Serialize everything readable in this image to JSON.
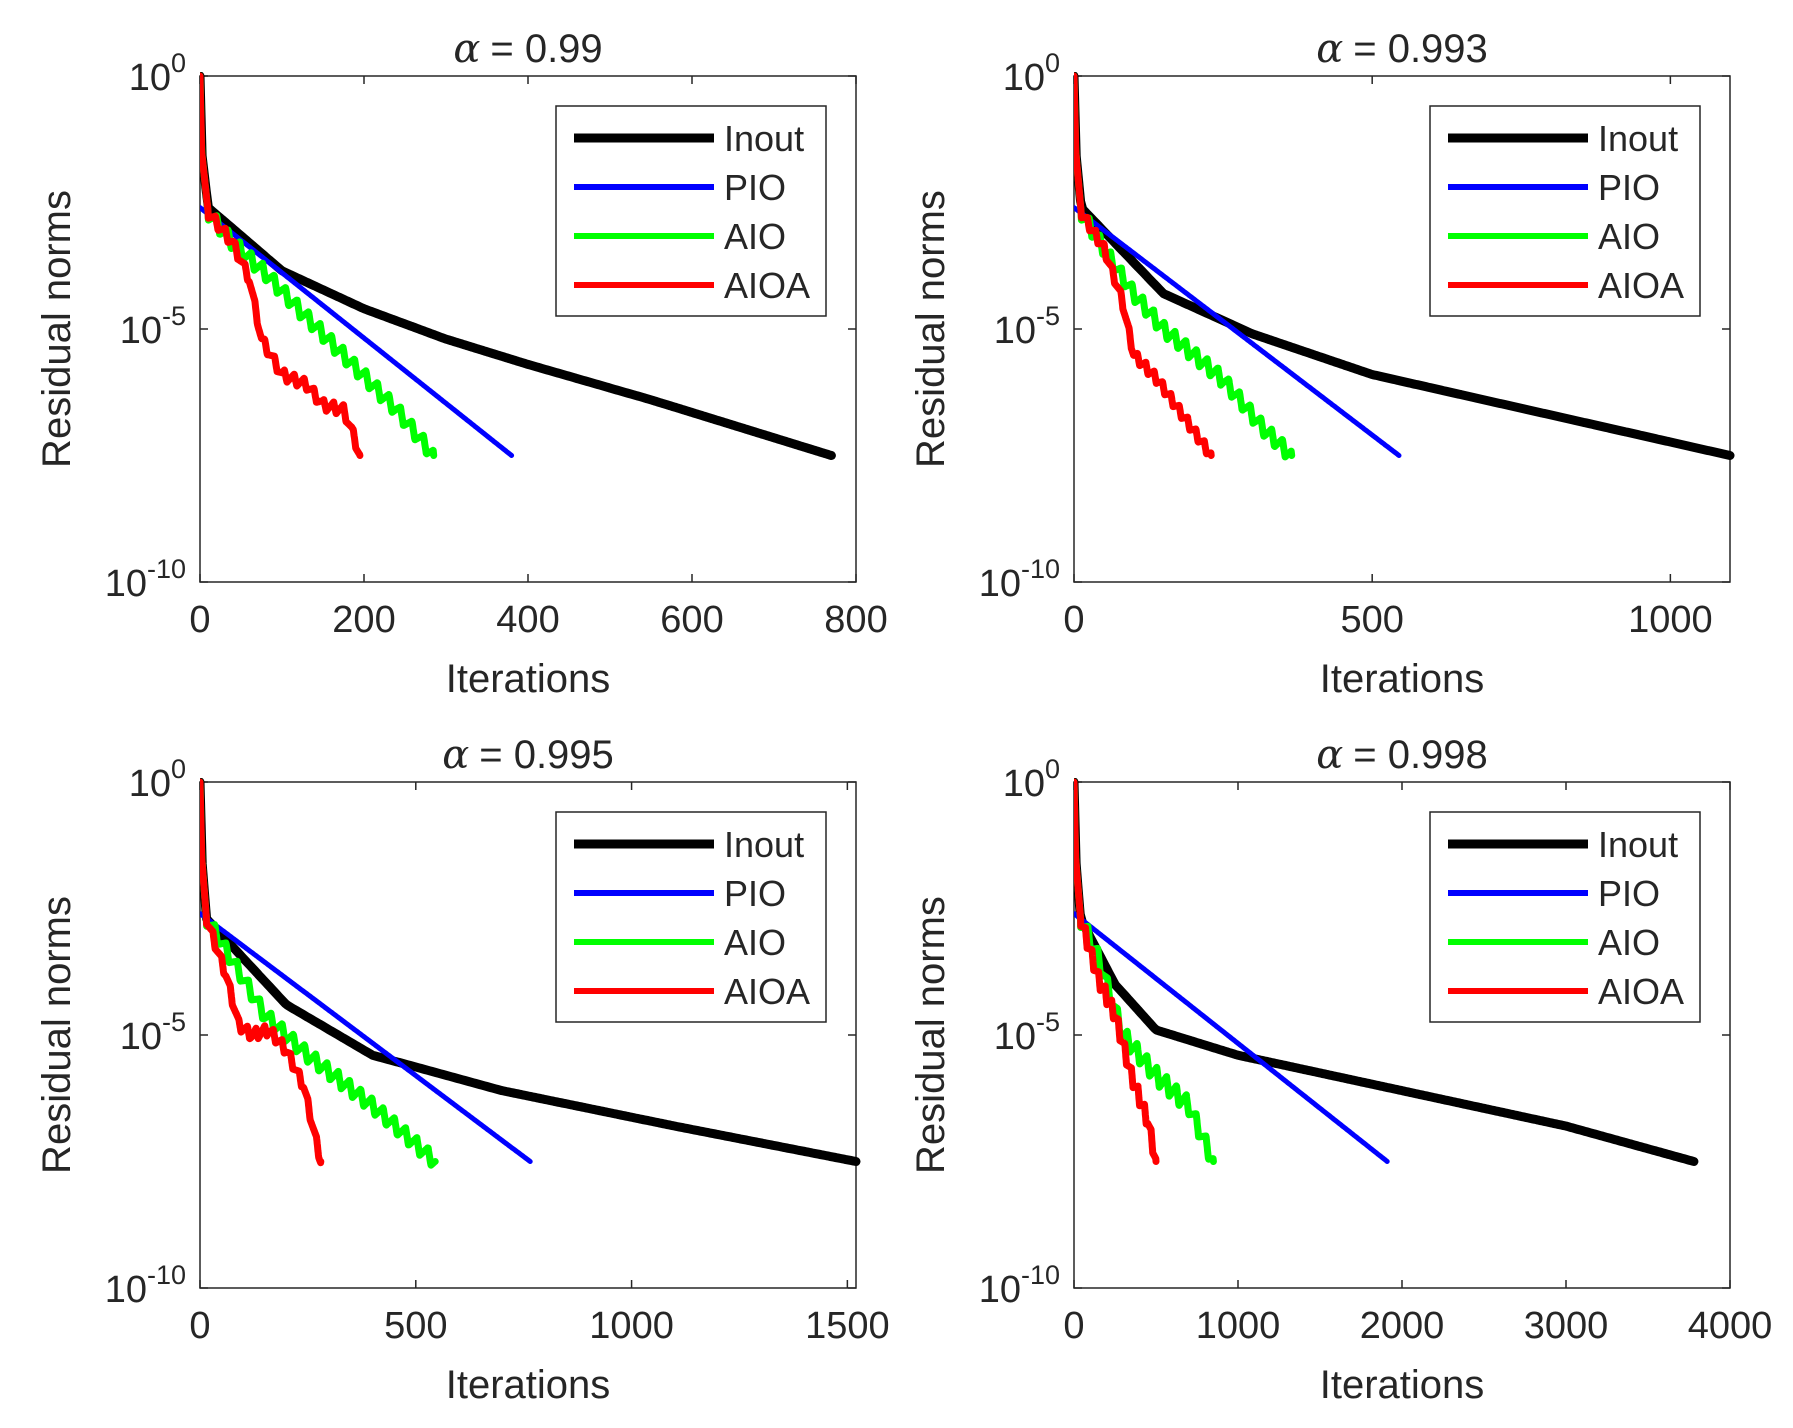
{
  "chart_data": [
    {
      "type": "line",
      "title_symbol": "α",
      "title_value": "= 0.99",
      "xlabel": "Iterations",
      "ylabel": "Residual norms",
      "yscale": "log",
      "xlim": [
        0,
        800
      ],
      "ylim_exp": [
        -10,
        0
      ],
      "xticks": [
        0,
        200,
        400,
        600,
        800
      ],
      "xtick_labels": [
        "0",
        "200",
        "400",
        "600",
        "800"
      ],
      "yticks_exp": [
        0,
        -5,
        -10
      ],
      "ytick_base": "10",
      "ytick_exps": [
        "0",
        "-5",
        "-10"
      ],
      "legend": [
        "Inout",
        "PIO",
        "AIO",
        "AIOA"
      ],
      "series": [
        {
          "name": "Inout",
          "color": "#000000",
          "shape": "smooth",
          "points": [
            [
              0,
              0
            ],
            [
              2,
              -1.5
            ],
            [
              10,
              -2.6
            ],
            [
              100,
              -3.85
            ],
            [
              200,
              -4.6
            ],
            [
              300,
              -5.2
            ],
            [
              400,
              -5.7
            ],
            [
              550,
              -6.4
            ],
            [
              770,
              -7.5
            ]
          ]
        },
        {
          "name": "PIO",
          "color": "#0000ff",
          "shape": "smooth",
          "points": [
            [
              0,
              -2.6
            ],
            [
              380,
              -7.5
            ]
          ]
        },
        {
          "name": "AIO",
          "color": "#00ff00",
          "shape": "jagged",
          "amp": 0.3,
          "period": 14,
          "points": [
            [
              0,
              0
            ],
            [
              2,
              -1.5
            ],
            [
              10,
              -2.7
            ],
            [
              40,
              -3.3
            ],
            [
              80,
              -3.9
            ],
            [
              120,
              -4.6
            ],
            [
              180,
              -5.6
            ],
            [
              240,
              -6.6
            ],
            [
              285,
              -7.5
            ]
          ]
        },
        {
          "name": "AIOA",
          "color": "#ff0000",
          "shape": "jagged",
          "amp": 0.22,
          "period": 12,
          "points": [
            [
              0,
              0
            ],
            [
              2,
              -1.5
            ],
            [
              10,
              -2.7
            ],
            [
              40,
              -3.3
            ],
            [
              60,
              -4.0
            ],
            [
              75,
              -5.2
            ],
            [
              100,
              -5.9
            ],
            [
              130,
              -6.1
            ],
            [
              150,
              -6.5
            ],
            [
              175,
              -6.6
            ],
            [
              185,
              -7.0
            ],
            [
              195,
              -7.5
            ]
          ]
        }
      ]
    },
    {
      "type": "line",
      "title_symbol": "α",
      "title_value": "= 0.993",
      "xlabel": "Iterations",
      "ylabel": "Residual norms",
      "yscale": "log",
      "xlim": [
        0,
        1100
      ],
      "ylim_exp": [
        -10,
        0
      ],
      "xticks": [
        0,
        500,
        1000
      ],
      "xtick_labels": [
        "0",
        "500",
        "1000"
      ],
      "yticks_exp": [
        0,
        -5,
        -10
      ],
      "ytick_base": "10",
      "ytick_exps": [
        "0",
        "-5",
        "-10"
      ],
      "legend": [
        "Inout",
        "PIO",
        "AIO",
        "AIOA"
      ],
      "series": [
        {
          "name": "Inout",
          "color": "#000000",
          "shape": "smooth",
          "points": [
            [
              0,
              0
            ],
            [
              3,
              -1.5
            ],
            [
              12,
              -2.6
            ],
            [
              150,
              -4.3
            ],
            [
              300,
              -5.1
            ],
            [
              500,
              -5.9
            ],
            [
              800,
              -6.7
            ],
            [
              1100,
              -7.5
            ]
          ]
        },
        {
          "name": "PIO",
          "color": "#0000ff",
          "shape": "smooth",
          "points": [
            [
              0,
              -2.6
            ],
            [
              545,
              -7.5
            ]
          ]
        },
        {
          "name": "AIO",
          "color": "#00ff00",
          "shape": "jagged",
          "amp": 0.3,
          "period": 18,
          "points": [
            [
              0,
              0
            ],
            [
              3,
              -1.5
            ],
            [
              12,
              -2.7
            ],
            [
              60,
              -3.6
            ],
            [
              100,
              -4.3
            ],
            [
              150,
              -5.0
            ],
            [
              250,
              -6.0
            ],
            [
              320,
              -7.0
            ],
            [
              365,
              -7.5
            ]
          ]
        },
        {
          "name": "AIOA",
          "color": "#ff0000",
          "shape": "jagged",
          "amp": 0.2,
          "period": 14,
          "points": [
            [
              0,
              0
            ],
            [
              3,
              -1.5
            ],
            [
              12,
              -2.7
            ],
            [
              50,
              -3.4
            ],
            [
              80,
              -4.4
            ],
            [
              100,
              -5.5
            ],
            [
              140,
              -6.0
            ],
            [
              170,
              -6.5
            ],
            [
              200,
              -7.0
            ],
            [
              230,
              -7.5
            ]
          ]
        }
      ]
    },
    {
      "type": "line",
      "title_symbol": "α",
      "title_value": "= 0.995",
      "xlabel": "Iterations",
      "ylabel": "Residual norms",
      "yscale": "log",
      "xlim": [
        0,
        1520
      ],
      "ylim_exp": [
        -10,
        0
      ],
      "xticks": [
        0,
        500,
        1000,
        1500
      ],
      "xtick_labels": [
        "0",
        "500",
        "1000",
        "1500"
      ],
      "yticks_exp": [
        0,
        -5,
        -10
      ],
      "ytick_base": "10",
      "ytick_exps": [
        "0",
        "-5",
        "-10"
      ],
      "legend": [
        "Inout",
        "PIO",
        "AIO",
        "AIOA"
      ],
      "series": [
        {
          "name": "Inout",
          "color": "#000000",
          "shape": "smooth",
          "points": [
            [
              0,
              0
            ],
            [
              4,
              -1.5
            ],
            [
              15,
              -2.7
            ],
            [
              200,
              -4.4
            ],
            [
              400,
              -5.4
            ],
            [
              700,
              -6.1
            ],
            [
              1100,
              -6.8
            ],
            [
              1520,
              -7.5
            ]
          ]
        },
        {
          "name": "PIO",
          "color": "#0000ff",
          "shape": "smooth",
          "points": [
            [
              0,
              -2.6
            ],
            [
              765,
              -7.5
            ]
          ]
        },
        {
          "name": "AIO",
          "color": "#00ff00",
          "shape": "jagged",
          "amp": 0.3,
          "period": 26,
          "points": [
            [
              0,
              0
            ],
            [
              4,
              -1.5
            ],
            [
              15,
              -2.7
            ],
            [
              80,
              -3.6
            ],
            [
              150,
              -4.6
            ],
            [
              250,
              -5.4
            ],
            [
              400,
              -6.4
            ],
            [
              545,
              -7.5
            ]
          ]
        },
        {
          "name": "AIOA",
          "color": "#ff0000",
          "shape": "jagged",
          "amp": 0.22,
          "period": 20,
          "points": [
            [
              0,
              0
            ],
            [
              4,
              -1.5
            ],
            [
              15,
              -2.7
            ],
            [
              60,
              -3.8
            ],
            [
              90,
              -4.8
            ],
            [
              120,
              -5.0
            ],
            [
              160,
              -4.9
            ],
            [
              200,
              -5.3
            ],
            [
              240,
              -6.0
            ],
            [
              280,
              -7.5
            ]
          ]
        }
      ]
    },
    {
      "type": "line",
      "title_symbol": "α",
      "title_value": "= 0.998",
      "xlabel": "Iterations",
      "ylabel": "Residual norms",
      "yscale": "log",
      "xlim": [
        0,
        4000
      ],
      "ylim_exp": [
        -10,
        0
      ],
      "xticks": [
        0,
        1000,
        2000,
        3000,
        4000
      ],
      "xtick_labels": [
        "0",
        "1000",
        "2000",
        "3000",
        "4000"
      ],
      "yticks_exp": [
        0,
        -5,
        -10
      ],
      "ytick_base": "10",
      "ytick_exps": [
        "0",
        "-5",
        "-10"
      ],
      "legend": [
        "Inout",
        "PIO",
        "AIO",
        "AIOA"
      ],
      "series": [
        {
          "name": "Inout",
          "color": "#000000",
          "shape": "smooth",
          "points": [
            [
              0,
              0
            ],
            [
              10,
              -1.5
            ],
            [
              40,
              -2.7
            ],
            [
              250,
              -4.0
            ],
            [
              500,
              -4.9
            ],
            [
              1000,
              -5.4
            ],
            [
              2000,
              -6.1
            ],
            [
              3000,
              -6.8
            ],
            [
              3780,
              -7.5
            ]
          ]
        },
        {
          "name": "PIO",
          "color": "#0000ff",
          "shape": "smooth",
          "points": [
            [
              0,
              -2.6
            ],
            [
              1910,
              -7.5
            ]
          ]
        },
        {
          "name": "AIO",
          "color": "#00ff00",
          "shape": "jagged",
          "amp": 0.35,
          "period": 60,
          "points": [
            [
              0,
              0
            ],
            [
              10,
              -1.5
            ],
            [
              40,
              -2.7
            ],
            [
              150,
              -3.5
            ],
            [
              300,
              -5.0
            ],
            [
              500,
              -5.8
            ],
            [
              700,
              -6.4
            ],
            [
              850,
              -7.5
            ]
          ]
        },
        {
          "name": "AIOA",
          "color": "#ff0000",
          "shape": "jagged",
          "amp": 0.3,
          "period": 40,
          "points": [
            [
              0,
              0
            ],
            [
              10,
              -1.5
            ],
            [
              40,
              -2.7
            ],
            [
              150,
              -3.9
            ],
            [
              250,
              -4.6
            ],
            [
              350,
              -5.8
            ],
            [
              450,
              -6.7
            ],
            [
              500,
              -7.5
            ]
          ]
        }
      ]
    }
  ]
}
